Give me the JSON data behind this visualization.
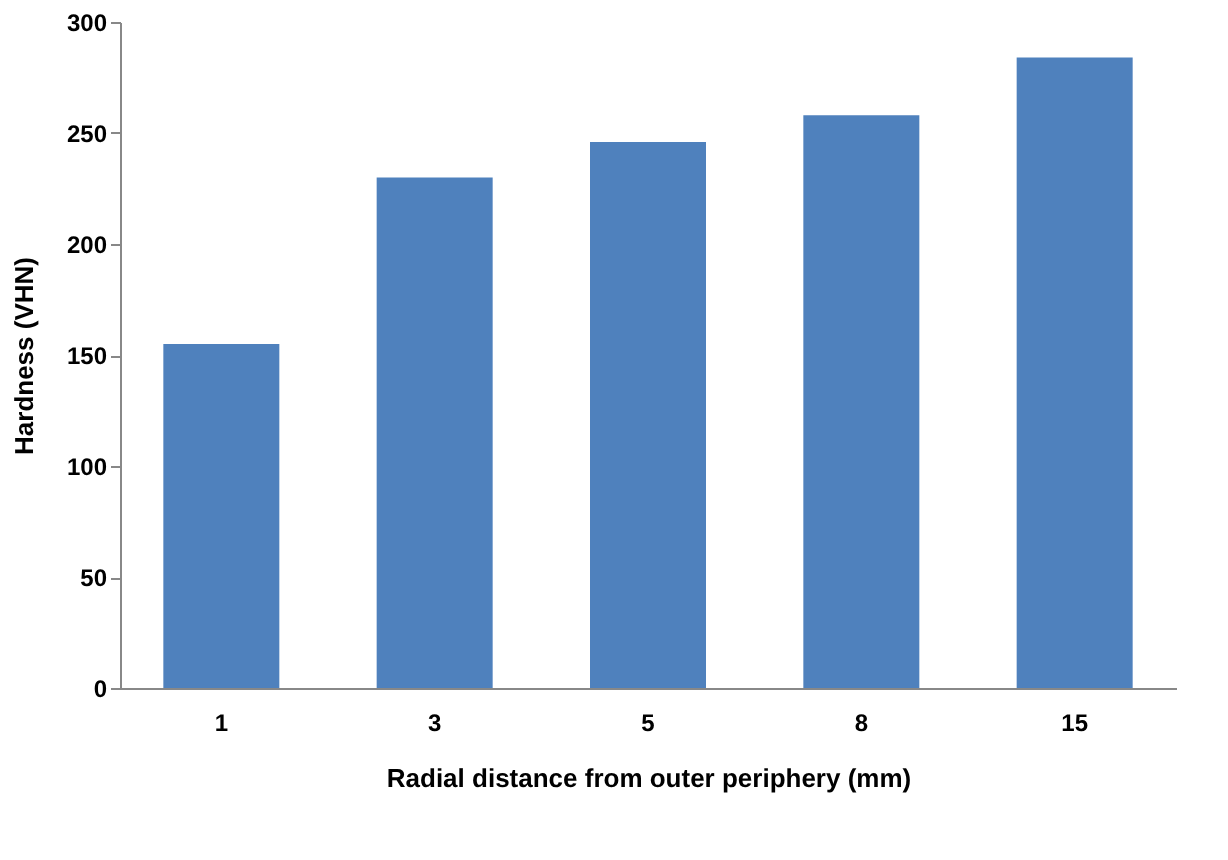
{
  "chart_data": {
    "type": "bar",
    "categories": [
      "1",
      "3",
      "5",
      "8",
      "15"
    ],
    "values": [
      155,
      230,
      246,
      258,
      284
    ],
    "color": "#4f81bd",
    "xlabel": "Radial distance from outer periphery (mm)",
    "ylabel": "Hardness (VHN)",
    "ylim": [
      0,
      300
    ],
    "yticks": [
      0,
      50,
      100,
      150,
      200,
      250,
      300
    ],
    "grid": false
  }
}
